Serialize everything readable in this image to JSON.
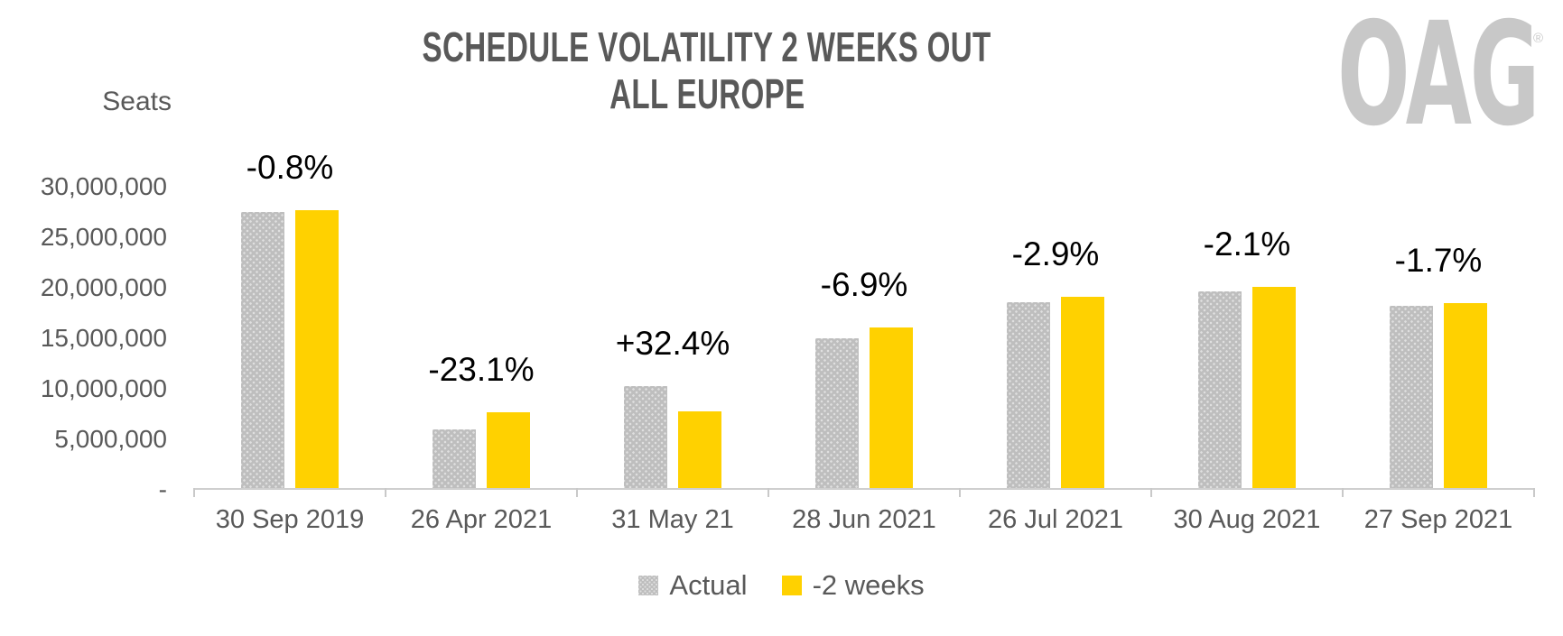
{
  "page": {
    "background": "#FFFFFF"
  },
  "title": {
    "line1": "SCHEDULE VOLATILITY 2 WEEKS OUT",
    "line2": "ALL EUROPE",
    "color": "#595959"
  },
  "logo": {
    "text": "OAG",
    "registered_mark": "®",
    "color": "#C8C8C8"
  },
  "y_axis": {
    "title": "Seats",
    "ticks": [
      {
        "label": "30,000,000",
        "value": 30000000
      },
      {
        "label": "25,000,000",
        "value": 25000000
      },
      {
        "label": "20,000,000",
        "value": 20000000
      },
      {
        "label": "15,000,000",
        "value": 15000000
      },
      {
        "label": "10,000,000",
        "value": 10000000
      },
      {
        "label": "5,000,000",
        "value": 5000000
      },
      {
        "label": "-",
        "value": 0
      }
    ]
  },
  "legend": {
    "items": [
      {
        "label": "Actual",
        "color": "#BEBEBE",
        "pattern": "dots"
      },
      {
        "label": "-2 weeks",
        "color": "#FFD100",
        "pattern": "solid"
      }
    ]
  },
  "chart_data": {
    "type": "bar",
    "title": "SCHEDULE VOLATILITY 2 WEEKS OUT — ALL EUROPE",
    "xlabel": "",
    "ylabel": "Seats",
    "ylim": [
      0,
      30000000
    ],
    "grid": false,
    "legend_position": "bottom",
    "categories": [
      "30 Sep 2019",
      "26 Apr 2021",
      "31 May 21",
      "28 Jun 2021",
      "26 Jul 2021",
      "30 Aug 2021",
      "27 Sep 2021"
    ],
    "series": [
      {
        "name": "Actual",
        "color": "#BEBEBE",
        "values": [
          27300000,
          5800000,
          10100000,
          14800000,
          18400000,
          19500000,
          18000000
        ]
      },
      {
        "name": "-2 weeks",
        "color": "#FFD100",
        "values": [
          27500000,
          7500000,
          7600000,
          15900000,
          18900000,
          19900000,
          18300000
        ]
      }
    ],
    "bar_labels": [
      "-0.8%",
      "-23.1%",
      "+32.4%",
      "-6.9%",
      "-2.9%",
      "-2.1%",
      "-1.7%"
    ]
  }
}
